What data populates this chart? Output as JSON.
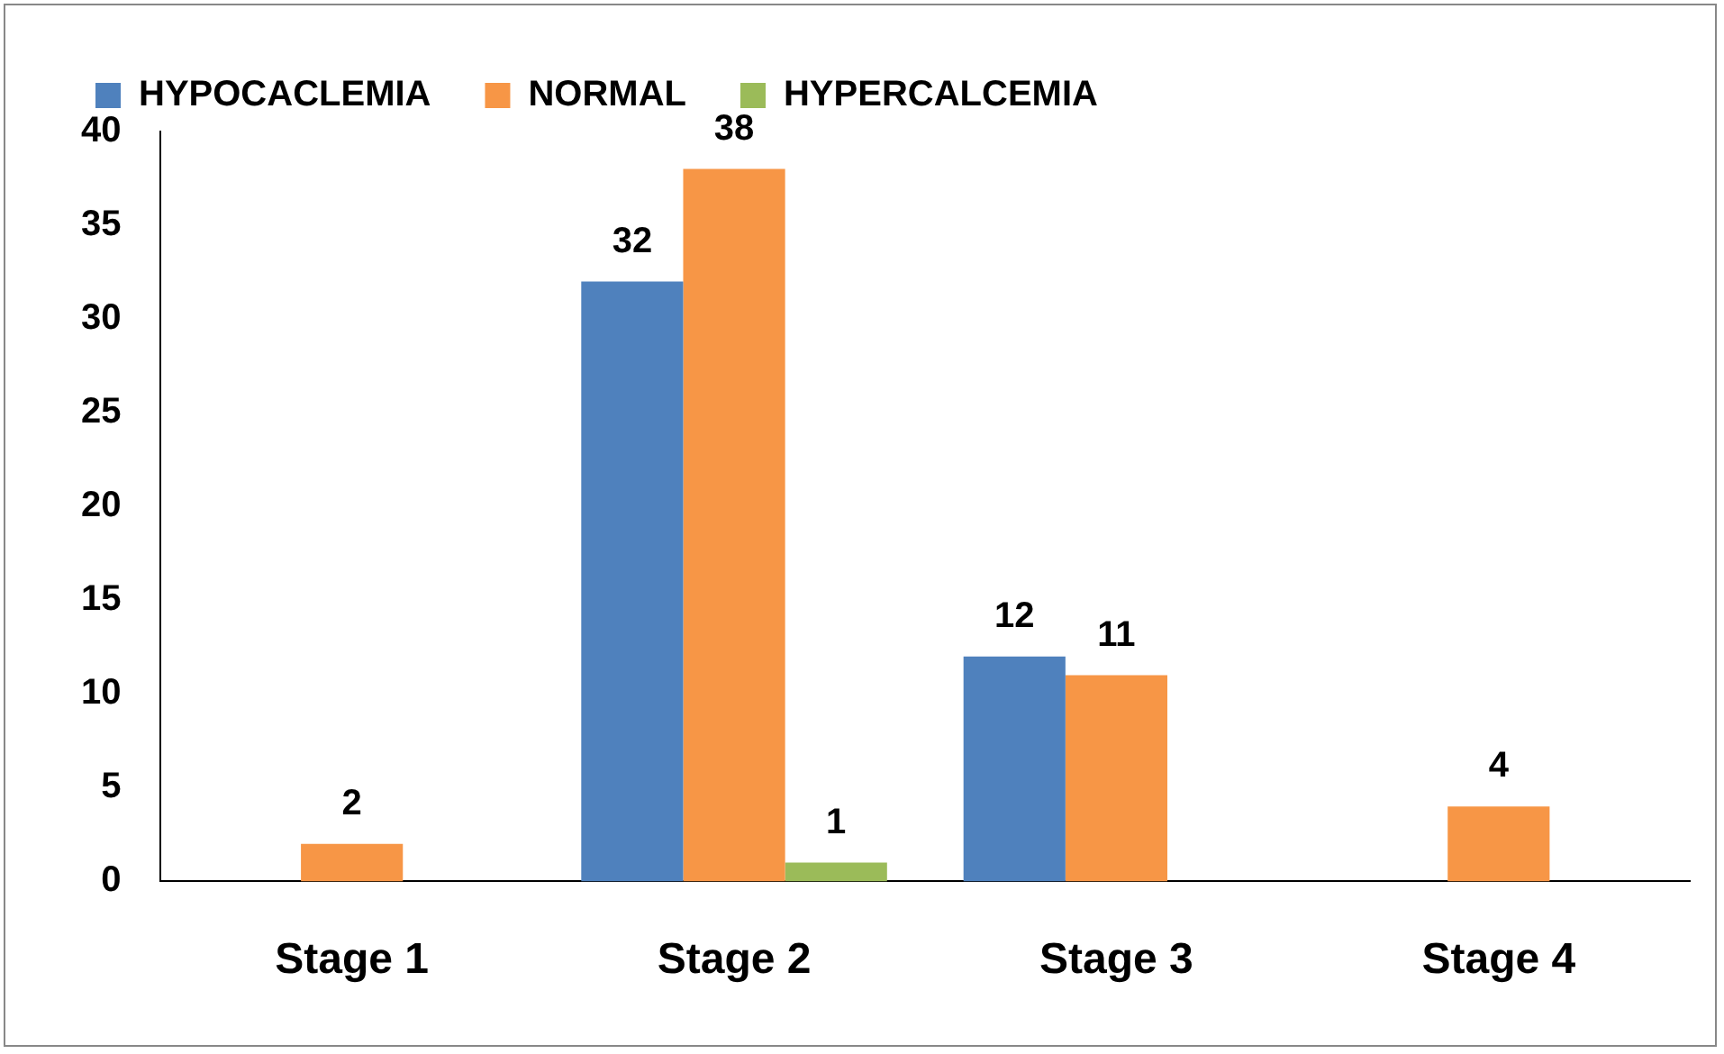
{
  "chart_data": {
    "type": "bar",
    "categories": [
      "Stage 1",
      "Stage 2",
      "Stage 3",
      "Stage 4"
    ],
    "series": [
      {
        "name": "HYPOCACLEMIA",
        "color": "#4f81bd",
        "values": [
          null,
          32,
          12,
          null
        ]
      },
      {
        "name": "NORMAL",
        "color": "#f79646",
        "values": [
          2,
          38,
          11,
          4
        ]
      },
      {
        "name": "HYPERCALCEMIA",
        "color": "#9bbb59",
        "values": [
          null,
          1,
          null,
          null
        ]
      }
    ],
    "ylim": [
      0,
      40
    ],
    "yticks": [
      0,
      5,
      10,
      15,
      20,
      25,
      30,
      35,
      40
    ],
    "grid": false,
    "legend": "top",
    "data_labels": true
  }
}
